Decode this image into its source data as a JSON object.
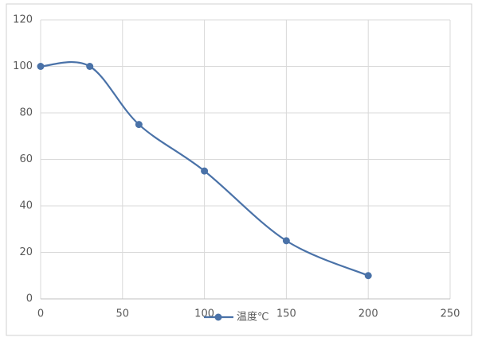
{
  "chart_data": {
    "type": "line",
    "smooth": true,
    "x": [
      0,
      30,
      60,
      100,
      150,
      200
    ],
    "series": [
      {
        "name": "温度℃",
        "color": "#4a72a8",
        "values": [
          100,
          100,
          75,
          55,
          25,
          10
        ]
      }
    ],
    "xlim": [
      0,
      250
    ],
    "xticks": [
      0,
      50,
      100,
      150,
      200,
      250
    ],
    "ylim": [
      0,
      120
    ],
    "yticks": [
      0,
      20,
      40,
      60,
      80,
      100,
      120
    ],
    "grid": true,
    "legend": "bottom"
  }
}
